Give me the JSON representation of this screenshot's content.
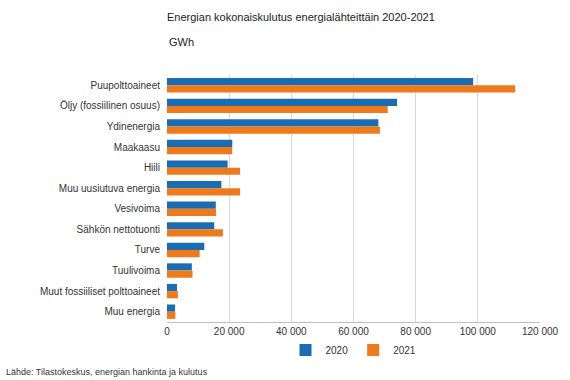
{
  "chart_data": {
    "type": "bar",
    "orientation": "horizontal",
    "title": "Energian kokonaiskulutus energialähteittäin 2020-2021",
    "subtitle": "GWh",
    "annotations": [
      "Lähde: Tilastokeskus, energian hankinta ja kulutus"
    ],
    "categories": [
      "Puupolttoaineet",
      "Öljy (fossiilinen osuus)",
      "Ydinenergia",
      "Maakaasu",
      "Hiili",
      "Muu uusiutuva energia",
      "Vesivoima",
      "Sähkön nettotuonti",
      "Turve",
      "Tuulivoima",
      "Muut fossiiliset polttoaineet",
      "Muu energia"
    ],
    "series": [
      {
        "name": "2020",
        "color": "#1b6db3",
        "values": [
          98500,
          74000,
          68000,
          21000,
          19500,
          17500,
          15700,
          15200,
          12000,
          8000,
          3200,
          2600
        ]
      },
      {
        "name": "2021",
        "color": "#ee7a1c",
        "values": [
          112000,
          71000,
          68500,
          21000,
          23500,
          23500,
          15800,
          18000,
          10500,
          8200,
          3500,
          2700
        ]
      }
    ],
    "xlim": [
      0,
      120000
    ],
    "xticks": [
      0,
      {
        "value": 20000,
        "label": "20 000"
      },
      {
        "value": 40000,
        "label": "40 000"
      },
      {
        "value": 60000,
        "label": "60 000"
      },
      {
        "value": 80000,
        "label": "80 000"
      },
      {
        "value": 100000,
        "label": "100 000"
      },
      {
        "value": 120000,
        "label": "120 000"
      }
    ],
    "grid": true,
    "legend": "bottom"
  }
}
